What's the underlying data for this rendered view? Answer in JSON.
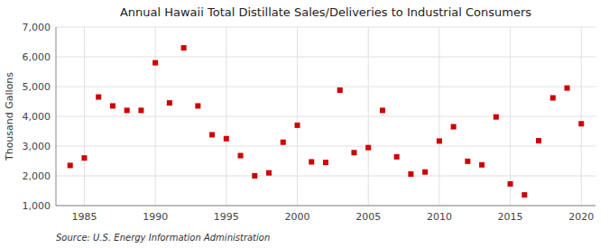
{
  "chart_data": {
    "type": "scatter",
    "title": "Annual Hawaii Total Distillate Sales/Deliveries to Industrial Consumers",
    "ylabel": "Thousand Gallons",
    "annotations": [
      "Source: U.S. Energy Information Administration"
    ],
    "color": "#cc0000",
    "marker": "square",
    "grid": true,
    "x": [
      1984,
      1985,
      1986,
      1987,
      1988,
      1989,
      1990,
      1991,
      1992,
      1993,
      1994,
      1995,
      1996,
      1997,
      1998,
      1999,
      2000,
      2001,
      2002,
      2003,
      2004,
      2005,
      2006,
      2007,
      2008,
      2009,
      2010,
      2011,
      2012,
      2013,
      2014,
      2015,
      2016,
      2017,
      2018,
      2019,
      2020
    ],
    "values": [
      2350,
      2600,
      4650,
      4350,
      4200,
      4200,
      5800,
      4450,
      6300,
      4350,
      3380,
      3250,
      2680,
      2000,
      2100,
      3130,
      3700,
      2470,
      2450,
      4880,
      2780,
      2950,
      4200,
      2640,
      2060,
      2130,
      3170,
      3650,
      2490,
      2370,
      3980,
      1730,
      1360,
      3180,
      4620,
      4950,
      3750
    ],
    "xlim": [
      1983,
      2021
    ],
    "ylim": [
      1000,
      7000
    ],
    "xticks": [
      1985,
      1990,
      1995,
      2000,
      2005,
      2010,
      2015,
      2020
    ],
    "yticks": [
      {
        "value": 1000,
        "label": "1,000"
      },
      {
        "value": 2000,
        "label": "2,000"
      },
      {
        "value": 3000,
        "label": "3,000"
      },
      {
        "value": 4000,
        "label": "4,000"
      },
      {
        "value": 5000,
        "label": "5,000"
      },
      {
        "value": 6000,
        "label": "6,000"
      },
      {
        "value": 7000,
        "label": "7,000"
      }
    ]
  }
}
